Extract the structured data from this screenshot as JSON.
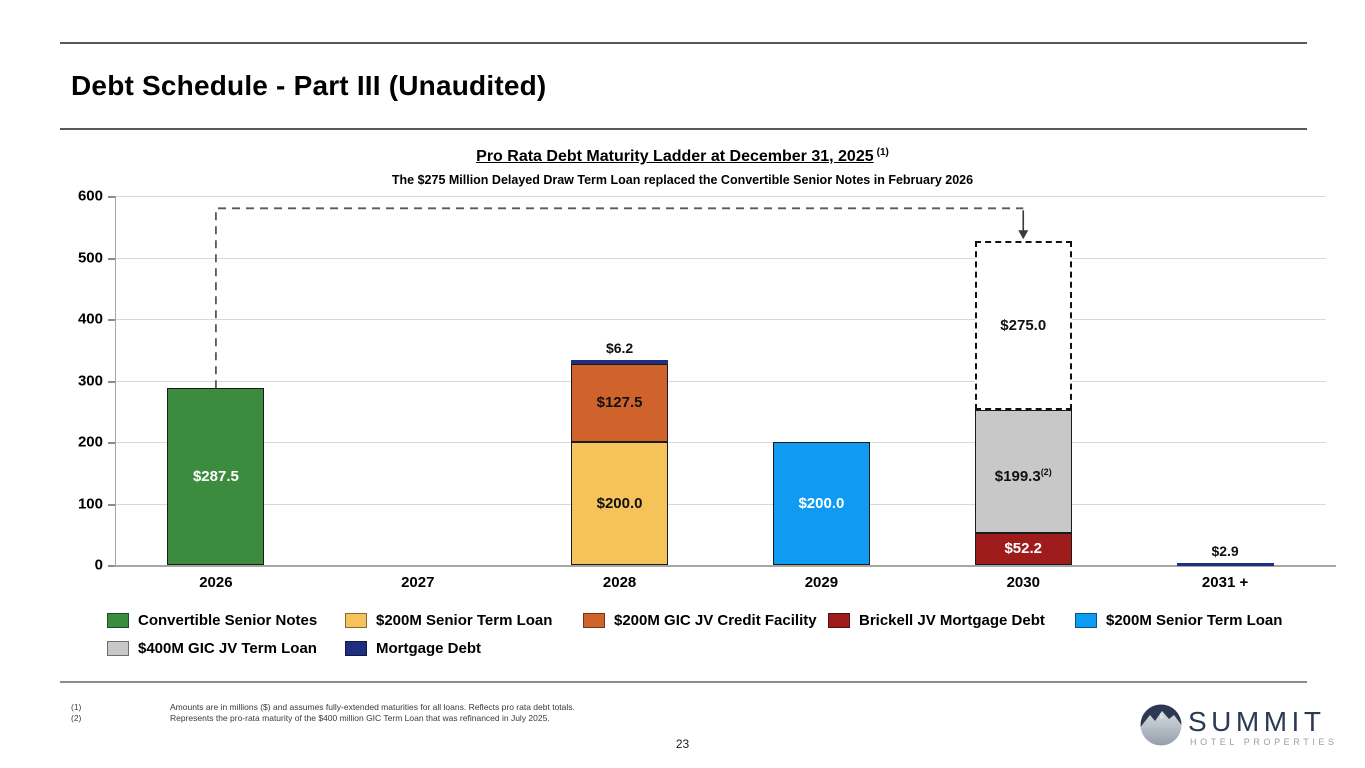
{
  "slide": {
    "title": "Debt Schedule - Part III (Unaudited)",
    "page_number": "23"
  },
  "chart_data": {
    "type": "bar",
    "stacked": true,
    "title": "Pro Rata Debt Maturity Ladder at December 31, 2025",
    "title_note_ref": "(1)",
    "subtitle": "The $275 Million Delayed Draw Term Loan replaced the Convertible Senior Notes in February 2026",
    "categories": [
      "2026",
      "2027",
      "2028",
      "2029",
      "2030",
      "2031 +"
    ],
    "ylim": [
      0,
      600
    ],
    "ytick_interval": 100,
    "grid": true,
    "legend_position": "bottom",
    "bars": [
      {
        "category": "2026",
        "series": "Convertible Senior Notes",
        "value": 287.5,
        "label": "$287.5",
        "color": "#3c8c40",
        "border": "#1a1a1a",
        "label_color": "#ffffff"
      },
      {
        "category": "2028",
        "series": "$200M Senior Term Loan",
        "value": 200.0,
        "label": "$200.0",
        "color": "#f6c35b",
        "border": "#1a1a1a",
        "label_color": "#111111"
      },
      {
        "category": "2028",
        "series": "$200M GIC JV Credit Facility",
        "value": 127.5,
        "label": "$127.5",
        "color": "#d0622b",
        "border": "#1a1a1a",
        "label_color": "#111111"
      },
      {
        "category": "2028",
        "series": "Mortgage Debt",
        "value": 6.2,
        "label": "$6.2",
        "color": "#1f2e7f",
        "border": null,
        "label_color": "#111111",
        "label_position": "above"
      },
      {
        "category": "2029",
        "series": "$200M Senior Term Loan",
        "value": 200.0,
        "label": "$200.0",
        "color": "#109bf2",
        "border": "#1a1a1a",
        "label_color": "#ffffff"
      },
      {
        "category": "2030",
        "series": "Brickell JV Mortgage Debt",
        "value": 52.2,
        "label": "$52.2",
        "color": "#9e1c1c",
        "border": "#1a1a1a",
        "label_color": "#ffffff"
      },
      {
        "category": "2030",
        "series": "$400M GIC JV Term Loan",
        "value": 199.3,
        "label": "$199.3",
        "label_sup": "(2)",
        "color": "#c8c8c8",
        "border": "#1a1a1a",
        "label_color": "#111111"
      },
      {
        "category": "2030",
        "series": "$275M Delayed Draw Term Loan",
        "value": 275.0,
        "label": "$275.0",
        "color": "#ffffff",
        "border": null,
        "label_color": "#111111",
        "style": "dashed-outline"
      },
      {
        "category": "2031 +",
        "series": "Mortgage Debt",
        "value": 2.9,
        "label": "$2.9",
        "color": "#1f2e7f",
        "border": null,
        "label_color": "#111111",
        "label_position": "above"
      }
    ],
    "annotation": {
      "type": "dashed-connector-arrow",
      "from_category": "2026",
      "from_value": 287.5,
      "elbow_value": 580,
      "to_category": "2030",
      "to_value": 526.5,
      "color": "#595959"
    },
    "legend": [
      {
        "label": "Convertible Senior Notes",
        "color": "#3c8c40",
        "row": 0,
        "col": 0
      },
      {
        "label": "$200M Senior Term Loan",
        "color": "#f6c35b",
        "row": 0,
        "col": 1
      },
      {
        "label": "$200M GIC JV Credit Facility",
        "color": "#d0622b",
        "row": 0,
        "col": 2
      },
      {
        "label": "Brickell JV Mortgage Debt",
        "color": "#9e1c1c",
        "row": 0,
        "col": 3
      },
      {
        "label": "$200M Senior Term Loan",
        "color": "#109bf2",
        "row": 0,
        "col": 4
      },
      {
        "label": "$400M GIC JV Term Loan",
        "color": "#c8c8c8",
        "row": 1,
        "col": 0
      },
      {
        "label": "Mortgage Debt",
        "color": "#1f2e7f",
        "row": 1,
        "col": 1
      }
    ]
  },
  "footnotes": [
    {
      "marker": "(1)",
      "text": "Amounts are in millions ($) and assumes fully-extended maturities for all loans. Reflects pro rata debt totals."
    },
    {
      "marker": "(2)",
      "text": "Represents the pro-rata maturity of the $400 million GIC Term Loan that was refinanced in July 2025."
    }
  ],
  "logo": {
    "name": "SUMMIT",
    "tagline": "HOTEL PROPERTIES"
  }
}
